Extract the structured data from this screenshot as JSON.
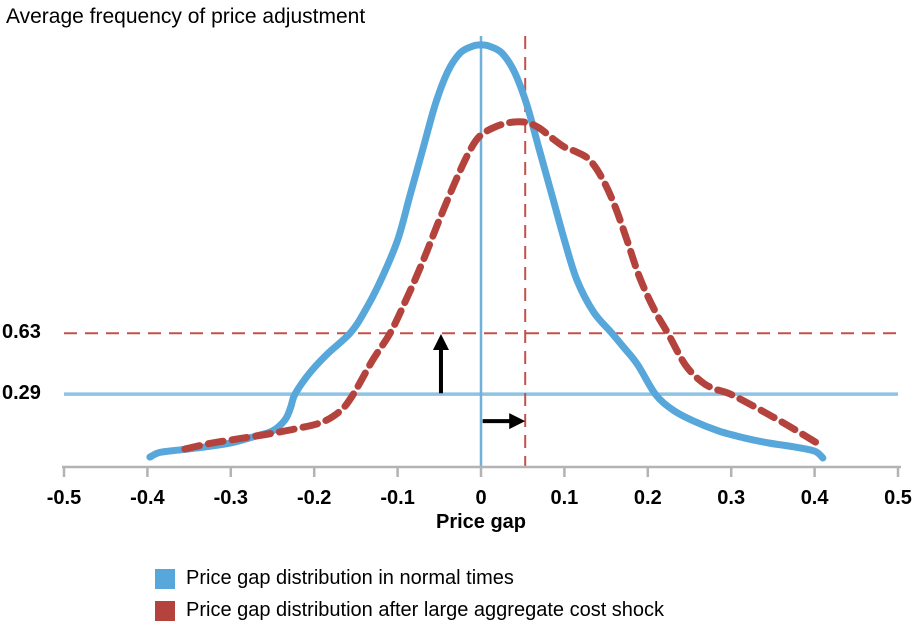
{
  "colors": {
    "blue_curve": "#57A7DB",
    "blue_reference": "#8FC3E2",
    "red_curve": "#B5433D",
    "red_reference": "#C1524B",
    "axis": "#B3B3B3",
    "text": "#000000",
    "arrow": "#000000"
  },
  "chart_data": {
    "type": "line",
    "title": "Average frequency of price adjustment",
    "xlabel": "Price gap",
    "ylabel": "",
    "x_range": [
      -0.5,
      0.5
    ],
    "y_unit_note": "y stored as fraction of plot height above x-axis (schematic density curves); labeled average adjustment frequencies: 0.29 normal times, 0.63 after shock",
    "grid": false,
    "legend_position": "bottom-left",
    "ticks": [
      {
        "x": -0.5,
        "label": "-0.5"
      },
      {
        "x": -0.4,
        "label": "-0.4"
      },
      {
        "x": -0.3,
        "label": "-0.3"
      },
      {
        "x": -0.2,
        "label": "-0.2"
      },
      {
        "x": -0.1,
        "label": "-0.1"
      },
      {
        "x": 0,
        "label": "0"
      },
      {
        "x": 0.1,
        "label": "0.1"
      },
      {
        "x": 0.2,
        "label": "0.2"
      },
      {
        "x": 0.3,
        "label": "0.3"
      },
      {
        "x": 0.4,
        "label": "0.4"
      },
      {
        "x": 0.5,
        "label": "0.5"
      }
    ],
    "series": [
      {
        "id": "curve-normal-times",
        "name": "Price gap distribution in normal times",
        "style": "solid",
        "color": "#57A7DB",
        "points": [
          [
            -0.397,
            0.023
          ],
          [
            -0.385,
            0.034
          ],
          [
            -0.36,
            0.04
          ],
          [
            -0.33,
            0.047
          ],
          [
            -0.3,
            0.056
          ],
          [
            -0.27,
            0.072
          ],
          [
            -0.25,
            0.084
          ],
          [
            -0.235,
            0.11
          ],
          [
            -0.228,
            0.14
          ],
          [
            -0.223,
            0.17
          ],
          [
            -0.205,
            0.22
          ],
          [
            -0.185,
            0.262
          ],
          [
            -0.157,
            0.312
          ],
          [
            -0.14,
            0.361
          ],
          [
            -0.12,
            0.436
          ],
          [
            -0.1,
            0.529
          ],
          [
            -0.085,
            0.634
          ],
          [
            -0.07,
            0.739
          ],
          [
            -0.055,
            0.844
          ],
          [
            -0.04,
            0.921
          ],
          [
            -0.025,
            0.965
          ],
          [
            -0.01,
            0.981
          ],
          [
            0,
            0.984
          ],
          [
            0.01,
            0.981
          ],
          [
            0.025,
            0.965
          ],
          [
            0.04,
            0.921
          ],
          [
            0.055,
            0.844
          ],
          [
            0.07,
            0.739
          ],
          [
            0.085,
            0.634
          ],
          [
            0.1,
            0.529
          ],
          [
            0.115,
            0.436
          ],
          [
            0.135,
            0.361
          ],
          [
            0.157,
            0.312
          ],
          [
            0.172,
            0.277
          ],
          [
            0.188,
            0.238
          ],
          [
            0.209,
            0.17
          ],
          [
            0.23,
            0.133
          ],
          [
            0.255,
            0.107
          ],
          [
            0.285,
            0.084
          ],
          [
            0.315,
            0.068
          ],
          [
            0.345,
            0.056
          ],
          [
            0.375,
            0.047
          ],
          [
            0.4,
            0.037
          ],
          [
            0.41,
            0.021
          ]
        ]
      },
      {
        "id": "curve-after-shock",
        "name": "Price gap distribution after large aggregate cost shock",
        "style": "dashed",
        "color": "#B5433D",
        "points": [
          [
            -0.355,
            0.042
          ],
          [
            -0.325,
            0.055
          ],
          [
            -0.29,
            0.066
          ],
          [
            -0.255,
            0.077
          ],
          [
            -0.22,
            0.09
          ],
          [
            -0.19,
            0.105
          ],
          [
            -0.168,
            0.132
          ],
          [
            -0.153,
            0.17
          ],
          [
            -0.13,
            0.249
          ],
          [
            -0.109,
            0.312
          ],
          [
            -0.09,
            0.389
          ],
          [
            -0.07,
            0.478
          ],
          [
            -0.05,
            0.576
          ],
          [
            -0.03,
            0.669
          ],
          [
            -0.013,
            0.739
          ],
          [
            0.0,
            0.774
          ],
          [
            0.02,
            0.795
          ],
          [
            0.038,
            0.804
          ],
          [
            0.055,
            0.803
          ],
          [
            0.07,
            0.79
          ],
          [
            0.085,
            0.767
          ],
          [
            0.1,
            0.746
          ],
          [
            0.115,
            0.734
          ],
          [
            0.13,
            0.716
          ],
          [
            0.145,
            0.674
          ],
          [
            0.16,
            0.611
          ],
          [
            0.175,
            0.529
          ],
          [
            0.19,
            0.443
          ],
          [
            0.208,
            0.366
          ],
          [
            0.224,
            0.312
          ],
          [
            0.245,
            0.238
          ],
          [
            0.265,
            0.198
          ],
          [
            0.28,
            0.182
          ],
          [
            0.299,
            0.17
          ],
          [
            0.335,
            0.133
          ],
          [
            0.367,
            0.098
          ],
          [
            0.403,
            0.056
          ]
        ]
      }
    ],
    "reference_lines": [
      {
        "name": "ref-line-avg-frequency-after-shock",
        "orientation": "horizontal",
        "h": 0.312,
        "label": "0.63",
        "style": "dashed",
        "color": "#C1524B"
      },
      {
        "name": "ref-line-avg-frequency-normal",
        "orientation": "horizontal",
        "h": 0.17,
        "label": "0.29",
        "style": "solid",
        "color": "#8FC3E2"
      },
      {
        "name": "ref-line-zero-price-gap",
        "orientation": "vertical",
        "x": 0,
        "label": "",
        "style": "solid",
        "color": "#6FB0DD"
      },
      {
        "name": "ref-line-price-gap-after-shock",
        "orientation": "vertical",
        "x": 0.053,
        "label": "",
        "style": "dashed",
        "color": "#C1524B"
      }
    ],
    "annotations": {
      "arrows": [
        {
          "id": "arrow-frequency-increase",
          "direction": "up",
          "x": -0.048,
          "from_h": 0.172,
          "to_h": 0.31
        },
        {
          "id": "arrow-price-gap-shift",
          "direction": "right",
          "from_x": 0.002,
          "to_x": 0.053,
          "h": 0.107
        }
      ]
    }
  }
}
